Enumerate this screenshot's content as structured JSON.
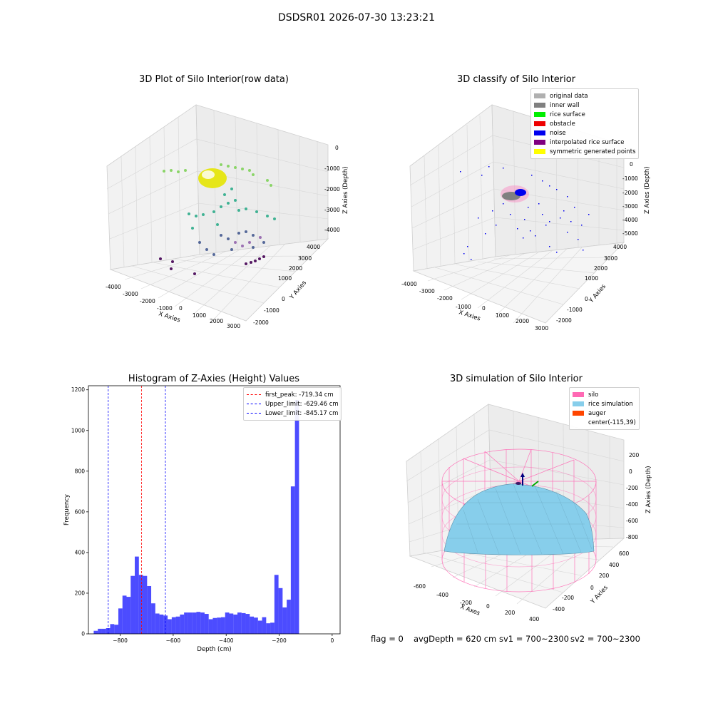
{
  "suptitle": "DSDSR01 2026-07-30 13:23:21",
  "panels": {
    "raw": {
      "title": "3D Plot of Silo Interior(row data)",
      "xlabel": "X Axies",
      "ylabel": "Y Axies",
      "zlabel": "Z Axies (Depth)",
      "xticks": [
        "-4000",
        "-3000",
        "-2000",
        "-1000",
        "0",
        "1000",
        "2000",
        "3000"
      ],
      "yticks": [
        "-2000",
        "-1000",
        "0",
        "1000",
        "2000",
        "3000",
        "4000"
      ],
      "zticks": [
        "0",
        "-1000",
        "-2000",
        "-3000",
        "-4000"
      ]
    },
    "classify": {
      "title": "3D classify of Silo Interior",
      "xlabel": "X Axies",
      "ylabel": "Y Axies",
      "zlabel": "Z Axies (Depth)",
      "xticks": [
        "-4000",
        "-3000",
        "-2000",
        "-1000",
        "0",
        "1000",
        "2000",
        "3000"
      ],
      "yticks": [
        "-2000",
        "-1000",
        "0",
        "1000",
        "2000",
        "3000",
        "4000"
      ],
      "zticks": [
        "0",
        "-1000",
        "-2000",
        "-3000",
        "-4000",
        "-5000"
      ],
      "legend": [
        {
          "label": "original data",
          "color": "#b0b0b0"
        },
        {
          "label": "inner wall",
          "color": "#808080"
        },
        {
          "label": "rice surface",
          "color": "#00ee00"
        },
        {
          "label": "obstacle",
          "color": "#ee0000"
        },
        {
          "label": "noise",
          "color": "#0000ee"
        },
        {
          "label": "interpolated rice surface",
          "color": "#800080"
        },
        {
          "label": "symmetric generated points",
          "color": "#ffff00"
        }
      ]
    },
    "simulation": {
      "title": "3D simulation of Silo Interior",
      "xlabel": "X Axes",
      "ylabel": "Y Axies",
      "zlabel": "Z Axies (Depth)",
      "xticks": [
        "-600",
        "-400",
        "-200",
        "0",
        "200",
        "400"
      ],
      "yticks": [
        "-400",
        "-200",
        "0",
        "200",
        "400",
        "600"
      ],
      "zticks": [
        "200",
        "0",
        "-200",
        "-400",
        "-600",
        "-800"
      ],
      "legend": [
        {
          "label": "silo",
          "color": "#ff69b4"
        },
        {
          "label": "rice simulation",
          "color": "#87ceeb"
        },
        {
          "label": "auger",
          "color": "#ff4500"
        },
        {
          "label": "center(-115,39)",
          "color": "#ffffff"
        }
      ]
    }
  },
  "chart_data": [
    {
      "type": "histogram",
      "title": "Histogram of Z-Axies (Height) Values",
      "xlabel": "Depth (cm)",
      "ylabel": "Frequency",
      "xlim": [
        -920,
        30
      ],
      "ylim": [
        0,
        1220
      ],
      "xticks": [
        -800,
        -600,
        -400,
        -200,
        0
      ],
      "yticks": [
        0,
        200,
        400,
        600,
        800,
        1000,
        1200
      ],
      "bin_width": 15.5,
      "bin_start": -900,
      "values": [
        15,
        25,
        25,
        28,
        48,
        45,
        125,
        188,
        182,
        285,
        380,
        290,
        285,
        235,
        150,
        100,
        95,
        90,
        72,
        82,
        85,
        95,
        105,
        105,
        105,
        108,
        105,
        98,
        72,
        78,
        80,
        82,
        105,
        100,
        95,
        105,
        102,
        98,
        85,
        80,
        65,
        82,
        52,
        55,
        290,
        225,
        130,
        168,
        725,
        1150
      ],
      "color": "#0000ff",
      "vlines": [
        {
          "label": "first_peak: -719.34 cm",
          "x": -719.34,
          "color": "#ff0000"
        },
        {
          "label": "Upper_limit: -629.46 cm",
          "x": -629.46,
          "color": "#0000ff"
        },
        {
          "label": "Lower_limit: -845.17 cm",
          "x": -845.17,
          "color": "#0000ff"
        }
      ]
    }
  ],
  "status": {
    "flag": "flag = 0",
    "avg_depth": "avgDepth = 620 cm",
    "sv1": "sv1 = 700~2300",
    "sv2": "sv2 = 700~2300"
  }
}
